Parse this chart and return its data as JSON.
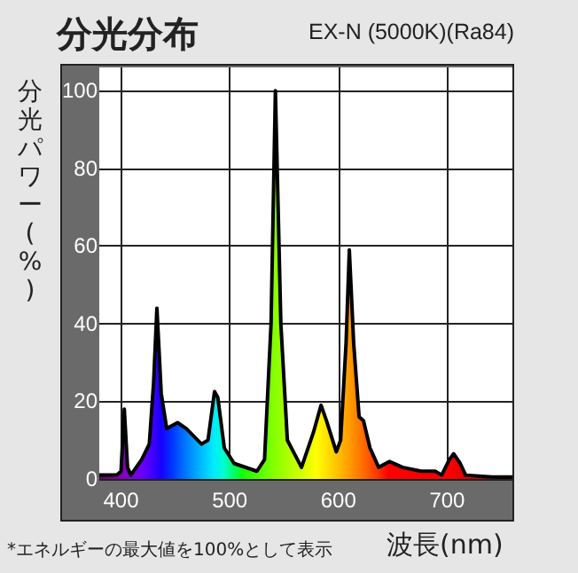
{
  "chart_data": {
    "type": "area",
    "title": "分光分布",
    "subtitle": "EX-N (5000K)(Ra84)",
    "xlabel": "波長(nm)",
    "ylabel": "分光パワー(%)",
    "annotations": [
      "*エネルギーの最大値を100%として表示"
    ],
    "x": [
      380,
      396,
      400,
      403,
      406,
      409,
      419,
      426,
      430,
      433,
      437,
      442,
      452,
      460,
      474,
      480,
      486,
      489,
      495,
      504,
      525,
      532,
      538,
      542,
      547,
      553,
      566,
      577,
      584,
      589,
      598,
      602,
      607,
      610,
      614,
      619,
      623,
      629,
      637,
      647,
      659,
      676,
      689,
      695,
      702,
      706,
      712,
      717,
      741,
      760
    ],
    "series": [
      {
        "color": "#000000",
        "values": [
          1,
          1,
          2,
          18,
          3,
          1,
          5,
          9,
          25,
          44,
          22,
          13,
          14.5,
          13,
          9,
          10,
          22.5,
          21,
          8,
          4,
          2,
          5,
          40,
          100,
          40,
          10,
          3,
          12,
          19,
          15,
          7,
          10,
          35,
          59,
          35,
          16,
          15,
          8,
          3,
          4.5,
          3,
          2,
          2,
          1,
          5,
          6.5,
          4,
          1,
          0.5,
          0.5
        ]
      }
    ],
    "xlim": [
      380,
      760
    ],
    "ylim": [
      0,
      106
    ],
    "xticks": [
      400,
      500,
      600,
      700
    ],
    "yticks": [
      0,
      20,
      40,
      60,
      80,
      100
    ],
    "grid": true,
    "marker": "none",
    "line_style": "solid"
  }
}
